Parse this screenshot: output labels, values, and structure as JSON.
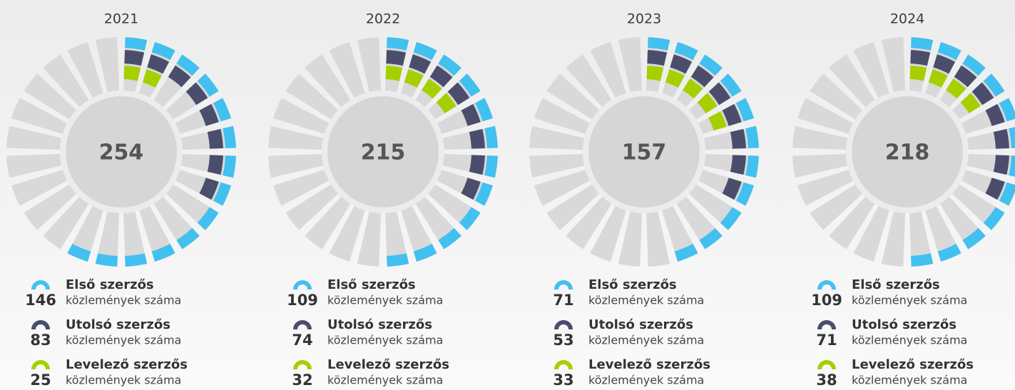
{
  "chart_data": [
    {
      "type": "radial",
      "title": "2021",
      "total": 254,
      "note": "közlemények száma",
      "series": [
        {
          "name": "Első szerzős",
          "color": "#42c0f0",
          "values": [
            146
          ]
        },
        {
          "name": "Utolsó szerzős",
          "color": "#4a4d6b",
          "values": [
            83
          ]
        },
        {
          "name": "Levelező szerzős",
          "color": "#a6cf00",
          "values": [
            25
          ]
        }
      ]
    },
    {
      "type": "radial",
      "title": "2022",
      "total": 215,
      "note": "közlemények száma",
      "series": [
        {
          "name": "Első szerzős",
          "color": "#42c0f0",
          "values": [
            109
          ]
        },
        {
          "name": "Utolsó szerzős",
          "color": "#4a4d6b",
          "values": [
            74
          ]
        },
        {
          "name": "Levelező szerzős",
          "color": "#a6cf00",
          "values": [
            32
          ]
        }
      ]
    },
    {
      "type": "radial",
      "title": "2023",
      "total": 157,
      "note": "közlemények száma",
      "series": [
        {
          "name": "Első szerzős",
          "color": "#42c0f0",
          "values": [
            71
          ]
        },
        {
          "name": "Utolsó szerzős",
          "color": "#4a4d6b",
          "values": [
            53
          ]
        },
        {
          "name": "Levelező szerzős",
          "color": "#a6cf00",
          "values": [
            33
          ]
        }
      ]
    },
    {
      "type": "radial",
      "title": "2024",
      "total": 218,
      "note": "közlemények száma",
      "series": [
        {
          "name": "Első szerzős",
          "color": "#42c0f0",
          "values": [
            109
          ]
        },
        {
          "name": "Utolsó szerzős",
          "color": "#4a4d6b",
          "values": [
            71
          ]
        },
        {
          "name": "Levelező szerzős",
          "color": "#a6cf00",
          "values": [
            38
          ]
        }
      ]
    }
  ]
}
